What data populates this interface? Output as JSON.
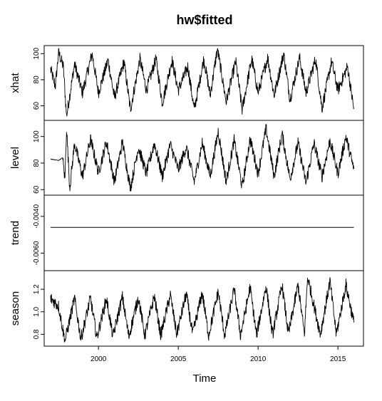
{
  "chart_data": {
    "type": "line",
    "title": "hw$fitted",
    "xlabel": "Time",
    "x_range": [
      1997.0,
      2016.0
    ],
    "xlim": [
      1996.6,
      2016.6
    ],
    "x_ticks": [
      2000,
      2005,
      2010,
      2015
    ],
    "x_tick_labels": [
      "2000",
      "2005",
      "2010",
      "2015"
    ],
    "frequency": 52,
    "panels": [
      {
        "name": "xhat",
        "ylabel": "xhat",
        "ylim": [
          51,
          104
        ],
        "y_ticks": [
          60,
          80,
          100
        ],
        "y_tick_labels": [
          "60",
          "80",
          "100"
        ],
        "approx_points": [
          [
            1997.0,
            88
          ],
          [
            1997.3,
            75
          ],
          [
            1997.5,
            101
          ],
          [
            1997.8,
            90
          ],
          [
            1998.0,
            52
          ],
          [
            1998.5,
            92
          ],
          [
            1999.0,
            70
          ],
          [
            1999.6,
            100
          ],
          [
            2000.0,
            70
          ],
          [
            2000.6,
            95
          ],
          [
            2001.0,
            66
          ],
          [
            2001.6,
            94
          ],
          [
            2002.0,
            57
          ],
          [
            2002.6,
            96
          ],
          [
            2003.0,
            72
          ],
          [
            2003.6,
            96
          ],
          [
            2004.0,
            62
          ],
          [
            2004.6,
            95
          ],
          [
            2005.0,
            72
          ],
          [
            2005.6,
            90
          ],
          [
            2006.0,
            57
          ],
          [
            2006.6,
            96
          ],
          [
            2007.0,
            68
          ],
          [
            2007.45,
            104
          ],
          [
            2008.0,
            63
          ],
          [
            2008.6,
            94
          ],
          [
            2009.0,
            57
          ],
          [
            2009.6,
            96
          ],
          [
            2010.0,
            70
          ],
          [
            2010.6,
            97
          ],
          [
            2011.0,
            68
          ],
          [
            2011.6,
            100
          ],
          [
            2012.0,
            65
          ],
          [
            2012.6,
            97
          ],
          [
            2013.0,
            70
          ],
          [
            2013.6,
            96
          ],
          [
            2014.0,
            58
          ],
          [
            2014.6,
            94
          ],
          [
            2015.0,
            72
          ],
          [
            2015.6,
            90
          ],
          [
            2016.0,
            57
          ]
        ]
      },
      {
        "name": "level",
        "ylabel": "level",
        "ylim": [
          58,
          110
        ],
        "y_ticks": [
          60,
          80,
          100
        ],
        "y_tick_labels": [
          "60",
          "80",
          "100"
        ],
        "approx_points": [
          [
            1997.0,
            83
          ],
          [
            1997.5,
            82
          ],
          [
            1997.75,
            84
          ],
          [
            1997.9,
            68
          ],
          [
            1998.0,
            107
          ],
          [
            1998.2,
            61
          ],
          [
            1998.5,
            95
          ],
          [
            1999.0,
            70
          ],
          [
            1999.5,
            98
          ],
          [
            2000.0,
            73
          ],
          [
            2000.5,
            96
          ],
          [
            2001.0,
            66
          ],
          [
            2001.5,
            96
          ],
          [
            2002.0,
            61
          ],
          [
            2002.5,
            92
          ],
          [
            2003.0,
            72
          ],
          [
            2003.5,
            95
          ],
          [
            2004.0,
            70
          ],
          [
            2004.5,
            94
          ],
          [
            2005.0,
            75
          ],
          [
            2005.5,
            92
          ],
          [
            2006.0,
            66
          ],
          [
            2006.5,
            95
          ],
          [
            2007.0,
            70
          ],
          [
            2007.5,
            104
          ],
          [
            2008.0,
            66
          ],
          [
            2008.5,
            97
          ],
          [
            2009.0,
            62
          ],
          [
            2009.5,
            98
          ],
          [
            2010.0,
            72
          ],
          [
            2010.5,
            106
          ],
          [
            2011.0,
            70
          ],
          [
            2011.5,
            102
          ],
          [
            2012.0,
            68
          ],
          [
            2012.5,
            95
          ],
          [
            2013.0,
            65
          ],
          [
            2013.5,
            95
          ],
          [
            2014.0,
            70
          ],
          [
            2014.5,
            97
          ],
          [
            2015.0,
            72
          ],
          [
            2015.5,
            100
          ],
          [
            2016.0,
            75
          ]
        ]
      },
      {
        "name": "trend",
        "ylabel": "trend",
        "ylim": [
          -0.0068,
          -0.003
        ],
        "y_ticks": [
          -0.006,
          -0.004
        ],
        "y_tick_labels": [
          "-0.0060",
          "-0.0040"
        ],
        "constant_value": -0.0046
      },
      {
        "name": "season",
        "ylabel": "season",
        "ylim": [
          0.72,
          1.34
        ],
        "y_ticks": [
          0.8,
          1.0,
          1.2
        ],
        "y_tick_labels": [
          "0.8",
          "1.0",
          "1.2"
        ],
        "approx_points": [
          [
            1997.0,
            1.12
          ],
          [
            1997.5,
            1.05
          ],
          [
            1997.9,
            0.74
          ],
          [
            1998.5,
            1.12
          ],
          [
            1998.9,
            0.76
          ],
          [
            1999.5,
            1.12
          ],
          [
            1999.9,
            0.77
          ],
          [
            2000.5,
            1.12
          ],
          [
            2000.9,
            0.78
          ],
          [
            2001.5,
            1.13
          ],
          [
            2001.9,
            0.78
          ],
          [
            2002.5,
            1.13
          ],
          [
            2002.9,
            0.79
          ],
          [
            2003.5,
            1.14
          ],
          [
            2003.9,
            0.79
          ],
          [
            2004.5,
            1.15
          ],
          [
            2004.9,
            0.8
          ],
          [
            2005.5,
            1.16
          ],
          [
            2005.9,
            0.8
          ],
          [
            2006.5,
            1.17
          ],
          [
            2006.9,
            0.79
          ],
          [
            2007.5,
            1.18
          ],
          [
            2007.9,
            0.79
          ],
          [
            2008.5,
            1.2
          ],
          [
            2008.9,
            0.79
          ],
          [
            2009.5,
            1.22
          ],
          [
            2009.9,
            0.79
          ],
          [
            2010.5,
            1.23
          ],
          [
            2010.9,
            0.79
          ],
          [
            2011.5,
            1.24
          ],
          [
            2011.9,
            0.8
          ],
          [
            2012.5,
            1.24
          ],
          [
            2012.9,
            0.8
          ],
          [
            2013.1,
            1.31
          ],
          [
            2013.9,
            0.8
          ],
          [
            2014.5,
            1.27
          ],
          [
            2014.9,
            0.8
          ],
          [
            2015.5,
            1.24
          ],
          [
            2016.0,
            0.9
          ]
        ]
      }
    ]
  }
}
